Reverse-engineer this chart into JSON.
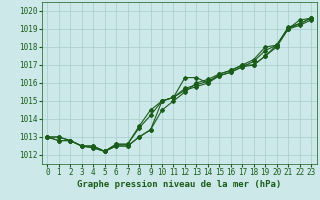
{
  "title": "",
  "xlabel": "Graphe pression niveau de la mer (hPa)",
  "ylabel": "",
  "bg_color": "#cce8e8",
  "line_color": "#1a5c1a",
  "grid_color": "#a8cccc",
  "xlim": [
    -0.5,
    23.5
  ],
  "ylim": [
    1011.5,
    1020.5
  ],
  "yticks": [
    1012,
    1013,
    1014,
    1015,
    1016,
    1017,
    1018,
    1019,
    1020
  ],
  "xticks": [
    0,
    1,
    2,
    3,
    4,
    5,
    6,
    7,
    8,
    9,
    10,
    11,
    12,
    13,
    14,
    15,
    16,
    17,
    18,
    19,
    20,
    21,
    22,
    23
  ],
  "series": [
    [
      1013.0,
      1013.0,
      1012.8,
      1012.5,
      1012.4,
      1012.2,
      1012.5,
      1012.5,
      1013.0,
      1013.4,
      1015.0,
      1015.2,
      1016.3,
      1016.3,
      1016.0,
      1016.5,
      1016.7,
      1017.0,
      1017.3,
      1018.0,
      1018.1,
      1019.0,
      1019.5,
      1019.6
    ],
    [
      1013.0,
      1013.0,
      1012.8,
      1012.5,
      1012.4,
      1012.2,
      1012.5,
      1012.5,
      1013.0,
      1013.4,
      1014.5,
      1015.0,
      1015.5,
      1016.0,
      1016.2,
      1016.5,
      1016.7,
      1017.0,
      1017.0,
      1017.5,
      1018.1,
      1019.0,
      1019.3,
      1019.6
    ],
    [
      1013.0,
      1012.8,
      1012.8,
      1012.5,
      1012.5,
      1012.2,
      1012.6,
      1012.6,
      1013.5,
      1014.2,
      1015.0,
      1015.2,
      1015.6,
      1015.8,
      1016.0,
      1016.4,
      1016.6,
      1016.9,
      1017.0,
      1017.5,
      1018.0,
      1019.0,
      1019.2,
      1019.5
    ],
    [
      1013.0,
      1012.8,
      1012.8,
      1012.5,
      1012.5,
      1012.2,
      1012.6,
      1012.6,
      1013.6,
      1014.5,
      1015.0,
      1015.2,
      1015.7,
      1015.9,
      1016.1,
      1016.4,
      1016.6,
      1016.9,
      1017.2,
      1017.8,
      1018.1,
      1019.1,
      1019.3,
      1019.6
    ]
  ],
  "marker": "D",
  "markersize": 2.0,
  "linewidth": 0.8,
  "tick_fontsize": 5.5,
  "xlabel_fontsize": 6.5
}
